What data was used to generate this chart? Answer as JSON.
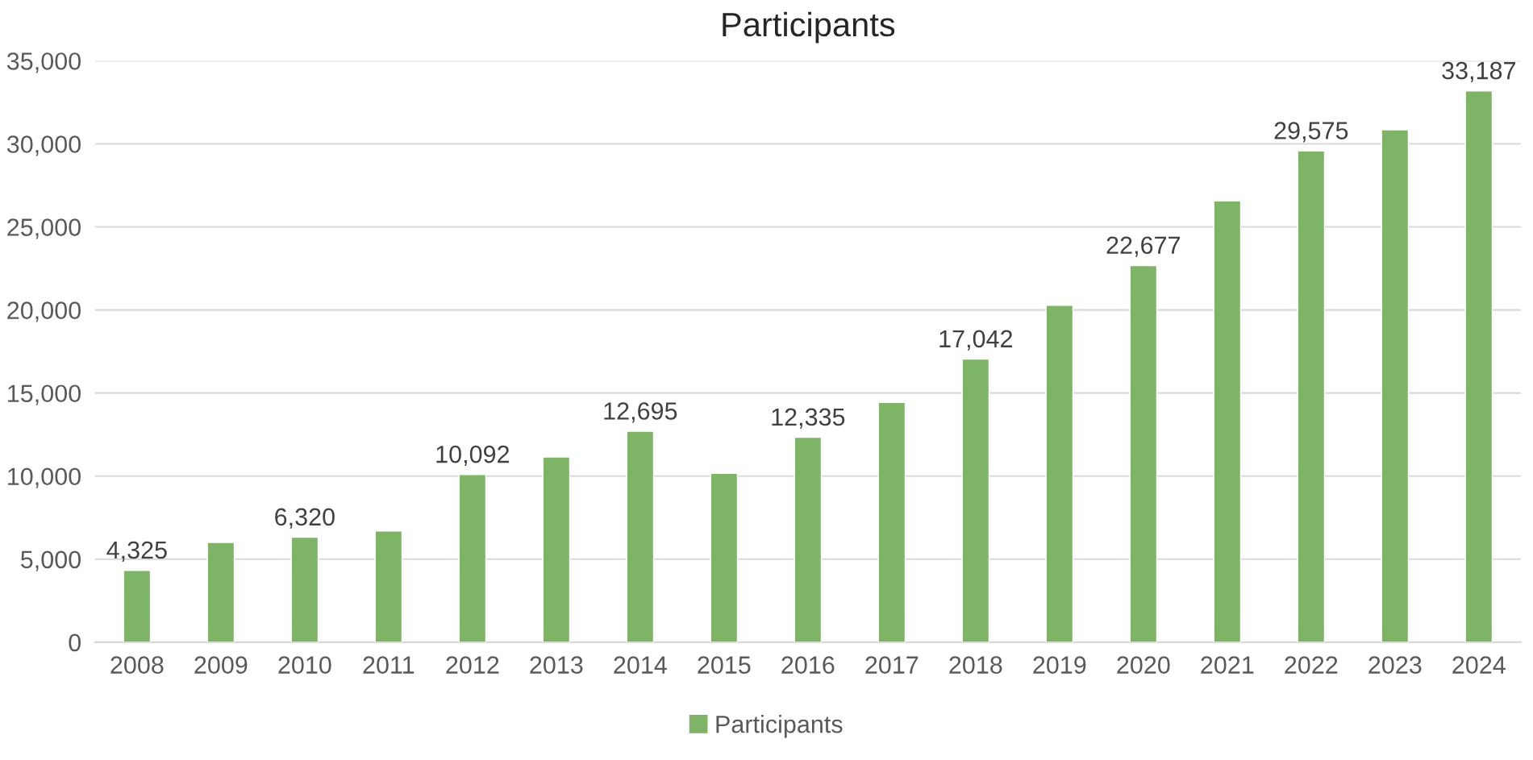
{
  "chart_data": {
    "type": "bar",
    "title": "Participants",
    "categories": [
      "2008",
      "2009",
      "2010",
      "2011",
      "2012",
      "2013",
      "2014",
      "2015",
      "2016",
      "2017",
      "2018",
      "2019",
      "2020",
      "2021",
      "2022",
      "2023",
      "2024"
    ],
    "series": [
      {
        "name": "Participants",
        "color": "#7db465",
        "values": [
          4325,
          6000,
          6320,
          6700,
          10092,
          11150,
          12695,
          10170,
          12335,
          14440,
          17042,
          20280,
          22677,
          26570,
          29575,
          30850,
          33187
        ],
        "value_labels": [
          "4,325",
          null,
          "6,320",
          null,
          "10,092",
          null,
          "12,695",
          null,
          "12,335",
          null,
          "17,042",
          null,
          "22,677",
          null,
          "29,575",
          null,
          "33,187"
        ]
      }
    ],
    "ylim": [
      0,
      35000
    ],
    "yticks": [
      {
        "value": 0,
        "label": "0"
      },
      {
        "value": 5000,
        "label": "5,000"
      },
      {
        "value": 10000,
        "label": "10,000"
      },
      {
        "value": 15000,
        "label": "15,000"
      },
      {
        "value": 20000,
        "label": "20,000"
      },
      {
        "value": 25000,
        "label": "25,000"
      },
      {
        "value": 30000,
        "label": "30,000"
      },
      {
        "value": 35000,
        "label": "35,000"
      }
    ],
    "grid": "y",
    "legend": "bottom"
  }
}
